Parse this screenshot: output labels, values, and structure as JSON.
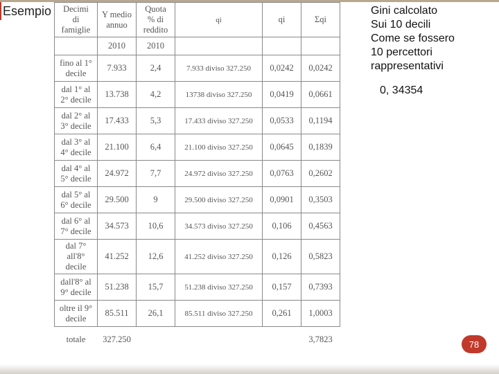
{
  "title": "Esempio",
  "side_note": {
    "l1": "Gini calcolato",
    "l2": "Sui 10 decili",
    "l3": "Come se fossero",
    "l4": "10 percettori",
    "l5": "rappresentativi"
  },
  "gini_value": "0, 34354",
  "page_number": "78",
  "table": {
    "headers": {
      "c0": "Decimi di famiglie",
      "c1": "Y medio annuo",
      "c2": "Quota % di reddito",
      "c3": "qi",
      "c4": "qi",
      "c5": "Σqi"
    },
    "subhead": {
      "c1": "2010",
      "c2": "2010"
    },
    "rows": [
      {
        "c0": "fino al 1° decile",
        "c1": "7.933",
        "c2": "2,4",
        "c3": "7.933 diviso 327.250",
        "c4": "0,0242",
        "c5": "0,0242"
      },
      {
        "c0": "dal 1° al 2° decile",
        "c1": "13.738",
        "c2": "4,2",
        "c3": "13738 diviso 327.250",
        "c4": "0,0419",
        "c5": "0,0661"
      },
      {
        "c0": "dal 2° al 3° decile",
        "c1": "17.433",
        "c2": "5,3",
        "c3": "17.433 diviso 327.250",
        "c4": "0,0533",
        "c5": "0,1194"
      },
      {
        "c0": "dal 3° al 4° decile",
        "c1": "21.100",
        "c2": "6,4",
        "c3": "21.100 diviso 327.250",
        "c4": "0,0645",
        "c5": "0,1839"
      },
      {
        "c0": "dal 4° al 5° decile",
        "c1": "24.972",
        "c2": "7,7",
        "c3": "24.972 diviso 327.250",
        "c4": "0,0763",
        "c5": "0,2602"
      },
      {
        "c0": "dal 5° al 6° decile",
        "c1": "29.500",
        "c2": "9",
        "c3": "29.500 diviso 327.250",
        "c4": "0,0901",
        "c5": "0,3503"
      },
      {
        "c0": "dal 6° al 7° decile",
        "c1": "34.573",
        "c2": "10,6",
        "c3": "34.573 diviso 327.250",
        "c4": "0,106",
        "c5": "0,4563"
      },
      {
        "c0": "dal 7° all'8° decile",
        "c1": "41.252",
        "c2": "12,6",
        "c3": "41.252 diviso 327.250",
        "c4": "0,126",
        "c5": "0,5823"
      },
      {
        "c0": "dall'8° al 9° decile",
        "c1": "51.238",
        "c2": "15,7",
        "c3": "51.238 diviso 327.250",
        "c4": "0,157",
        "c5": "0,7393"
      },
      {
        "c0": "oltre il 9° decile",
        "c1": "85.511",
        "c2": "26,1",
        "c3": "85.511 diviso 327.250",
        "c4": "0,261",
        "c5": "1,0003"
      }
    ],
    "total": {
      "c0": "totale",
      "c1": "327.250",
      "c5": "3,7823"
    }
  },
  "colors": {
    "accent": "#c0392b",
    "top_edge": "#b8a890",
    "table_border": "#888888",
    "table_text": "#555555"
  }
}
